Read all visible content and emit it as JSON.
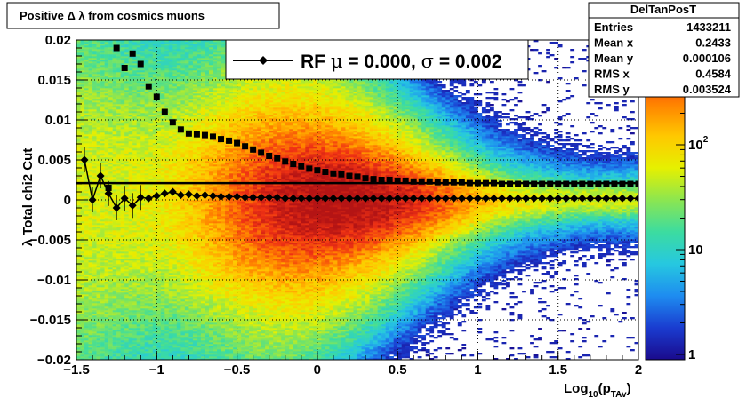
{
  "chart_data": {
    "type": "heatmap",
    "title": "Positive Δ λ from cosmics muons",
    "ylabel": "λ  Total chi2 Cut",
    "xlabel_main": "Log",
    "xlabel_sub1": "10",
    "xlabel_mid": "(p",
    "xlabel_sub2": "TAv",
    "xlabel_end": ")",
    "xlim": [
      -1.5,
      2
    ],
    "ylim": [
      -0.02,
      0.02
    ],
    "x_ticks": [
      {
        "v": -1.5,
        "label": "−1.5"
      },
      {
        "v": -1,
        "label": "−1"
      },
      {
        "v": -0.5,
        "label": "−0.5"
      },
      {
        "v": 0,
        "label": "0"
      },
      {
        "v": 0.5,
        "label": "0.5"
      },
      {
        "v": 1,
        "label": "1"
      },
      {
        "v": 1.5,
        "label": "1.5"
      },
      {
        "v": 2,
        "label": "2"
      }
    ],
    "y_ticks": [
      {
        "v": -0.02,
        "label": "−0.02"
      },
      {
        "v": -0.015,
        "label": "−0.015"
      },
      {
        "v": -0.01,
        "label": "−0.01"
      },
      {
        "v": -0.005,
        "label": "−0.005"
      },
      {
        "v": 0,
        "label": "0"
      },
      {
        "v": 0.005,
        "label": "0.005"
      },
      {
        "v": 0.01,
        "label": "0.01"
      },
      {
        "v": 0.015,
        "label": "0.015"
      },
      {
        "v": 0.02,
        "label": "0.02"
      }
    ],
    "grid": true,
    "log_z": true,
    "z_range": [
      1,
      1000
    ],
    "z_ticks": [
      {
        "v": 1,
        "label": "1"
      },
      {
        "v": 10,
        "label": "10"
      },
      {
        "v": 100,
        "label": "10",
        "sup": "2"
      }
    ],
    "colorbar_stops": [
      "#1a0a8c",
      "#1a3cd0",
      "#1e8cf0",
      "#26c8e0",
      "#3cdca0",
      "#8ce650",
      "#e6f000",
      "#ffc800",
      "#ff8200",
      "#f03214",
      "#b41414"
    ],
    "series": [
      {
        "kind": "mean",
        "x": [
          -1.45,
          -1.4,
          -1.35,
          -1.3,
          -1.25,
          -1.2,
          -1.15,
          -1.1,
          -1.05,
          -1,
          -0.95,
          -0.9,
          -0.85,
          -0.8,
          -0.75,
          -0.7,
          -0.65,
          -0.6,
          -0.55,
          -0.5,
          -0.45,
          -0.4,
          -0.35,
          -0.3,
          -0.25,
          -0.2,
          -0.15,
          -0.1,
          -0.05,
          0,
          0.05,
          0.1,
          0.15,
          0.2,
          0.25,
          0.3,
          0.35,
          0.4,
          0.45,
          0.5,
          0.55,
          0.6,
          0.65,
          0.7,
          0.75,
          0.8,
          0.85,
          0.9,
          0.95,
          1,
          1.05,
          1.1,
          1.15,
          1.2,
          1.25,
          1.3,
          1.35,
          1.4,
          1.45,
          1.5,
          1.55,
          1.6,
          1.65,
          1.7,
          1.75,
          1.8,
          1.85,
          1.9,
          1.95,
          2
        ],
        "y": [
          0.005,
          0.0,
          0.003,
          0.0008,
          -0.001,
          0.0002,
          -0.0007,
          0.0003,
          0.0002,
          0.0005,
          0.0008,
          0.001,
          0.0006,
          0.0007,
          0.0005,
          0.0006,
          0.0005,
          0.0004,
          0.0004,
          0.0004,
          0.0003,
          0.0003,
          0.0003,
          0.0003,
          0.0003,
          0.0002,
          0.0002,
          0.0002,
          0.0002,
          0.0002,
          0.0002,
          0.0002,
          0.0002,
          0.0002,
          0.0002,
          0.0002,
          0.0002,
          0.0002,
          0.0002,
          0.0002,
          0.0002,
          0.0002,
          0.0002,
          0.0002,
          0.0002,
          0.0002,
          0.0002,
          0.0002,
          0.0002,
          0.0002,
          0.0002,
          0.0002,
          0.0002,
          0.0002,
          0.0002,
          0.0002,
          0.0002,
          0.0002,
          0.0002,
          0.0002,
          0.0002,
          0.0002,
          0.0002,
          0.0002,
          0.0002,
          0.0002,
          0.0002,
          0.0002,
          0.0002,
          0.0002
        ]
      },
      {
        "kind": "rms",
        "x": [
          -1.3,
          -1.25,
          -1.2,
          -1.15,
          -1.1,
          -1.05,
          -1,
          -0.95,
          -0.9,
          -0.85,
          -0.8,
          -0.75,
          -0.7,
          -0.65,
          -0.6,
          -0.55,
          -0.5,
          -0.45,
          -0.4,
          -0.35,
          -0.3,
          -0.25,
          -0.2,
          -0.15,
          -0.1,
          -0.05,
          0,
          0.05,
          0.1,
          0.15,
          0.2,
          0.25,
          0.3,
          0.35,
          0.4,
          0.45,
          0.5,
          0.55,
          0.6,
          0.65,
          0.7,
          0.75,
          0.8,
          0.85,
          0.9,
          0.95,
          1,
          1.05,
          1.1,
          1.15,
          1.2,
          1.25,
          1.3,
          1.35,
          1.4,
          1.45,
          1.5,
          1.55,
          1.6,
          1.65,
          1.7,
          1.75,
          1.8,
          1.85,
          1.9,
          1.95,
          2
        ],
        "y": [
          0.0015,
          0.019,
          0.0165,
          0.0183,
          0.017,
          0.0142,
          0.0129,
          0.011,
          0.0097,
          0.0088,
          0.0083,
          0.0082,
          0.0081,
          0.0079,
          0.0076,
          0.0074,
          0.0071,
          0.0067,
          0.0063,
          0.0059,
          0.0055,
          0.0052,
          0.0048,
          0.0045,
          0.0042,
          0.0039,
          0.0037,
          0.0035,
          0.0033,
          0.0032,
          0.003,
          0.0029,
          0.0027,
          0.0026,
          0.0025,
          0.0025,
          0.0024,
          0.0024,
          0.0023,
          0.0023,
          0.0023,
          0.0022,
          0.0022,
          0.0022,
          0.0022,
          0.0021,
          0.0021,
          0.0021,
          0.0021,
          0.002,
          0.002,
          0.002,
          0.002,
          0.002,
          0.002,
          0.002,
          0.002,
          0.002,
          0.002,
          0.002,
          0.002,
          0.002,
          0.002,
          0.002,
          0.002,
          0.002,
          0.002
        ]
      }
    ],
    "reference_line_y": 0.0021,
    "legend": {
      "text_prefix": "RF ",
      "mu": "μ",
      "mid": " =  0.000, ",
      "sigma": "σ",
      "suffix": " =   0.002"
    },
    "stats": {
      "name": "DelTanPosT",
      "rows": [
        {
          "label": "Entries",
          "value": "1433211"
        },
        {
          "label": "Mean x",
          "value": "0.2433"
        },
        {
          "label": "Mean y",
          "value": "0.000106"
        },
        {
          "label": "RMS x",
          "value": "0.4584"
        },
        {
          "label": "RMS y",
          "value": "0.003524"
        }
      ]
    }
  }
}
